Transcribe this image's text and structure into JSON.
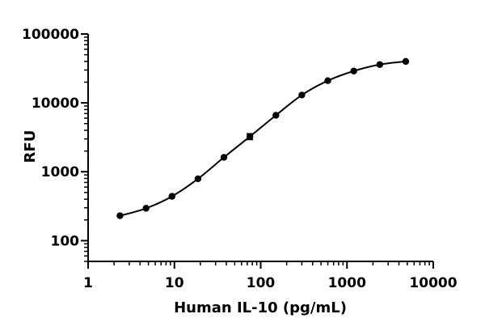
{
  "chart_data": {
    "type": "scatter",
    "title": "",
    "xlabel": "Human IL-10 (pg/mL)",
    "ylabel": "RFU",
    "x_scale": "log",
    "y_scale": "log",
    "xlim": [
      1,
      10000
    ],
    "ylim": [
      50,
      100000
    ],
    "x_ticks": [
      1,
      10,
      100,
      1000,
      10000
    ],
    "x_tick_labels": [
      "1",
      "10",
      "100",
      "1000",
      "10000"
    ],
    "y_ticks": [
      100,
      1000,
      10000,
      100000
    ],
    "y_tick_labels": [
      "100",
      "1000",
      "10000",
      "100000"
    ],
    "grid": false,
    "legend": "none",
    "series": [
      {
        "x": [
          2.34,
          4.69,
          9.38,
          18.75,
          37.5,
          75,
          150,
          300,
          600,
          1200,
          2400,
          4800
        ],
        "y": [
          230,
          295,
          440,
          790,
          1620,
          3250,
          6600,
          13000,
          21000,
          29000,
          36000,
          40000
        ],
        "error_index": 5,
        "error_range": [
          2950,
          3550
        ],
        "color": "#000000"
      }
    ]
  }
}
